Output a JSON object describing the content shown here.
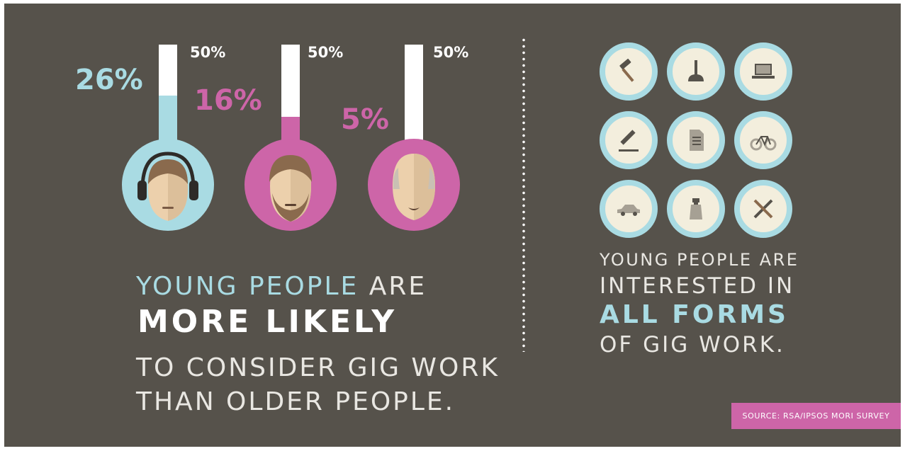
{
  "colors": {
    "background": "#56524b",
    "blue": "#a9dbe3",
    "pink": "#cd65a8",
    "white": "#ffffff",
    "icon_fill": "#f3eedd"
  },
  "gauges": [
    {
      "max_label": "50%",
      "value_label": "26%",
      "fill_fraction": 0.52,
      "color": "#a9dbe3",
      "face": "young-face-with-headphones"
    },
    {
      "max_label": "50%",
      "value_label": "16%",
      "fill_fraction": 0.32,
      "color": "#cd65a8",
      "face": "bearded-face"
    },
    {
      "max_label": "50%",
      "value_label": "5%",
      "fill_fraction": 0.1,
      "color": "#cd65a8",
      "face": "older-balding-face"
    }
  ],
  "left_text": {
    "line1_accent": "YOUNG PEOPLE",
    "line1_rest": " ARE",
    "line2": "MORE LIKELY",
    "line3": "TO CONSIDER GIG WORK",
    "line4": "THAN OLDER PEOPLE."
  },
  "icons": [
    "hammer-icon",
    "plunger-icon",
    "laptop-icon",
    "pencil-icon",
    "document-icon",
    "bicycle-icon",
    "car-icon",
    "spray-bottle-icon",
    "tools-icon"
  ],
  "right_text": {
    "line1": "YOUNG PEOPLE ARE",
    "line2": "INTERESTED IN",
    "line3": "ALL FORMS",
    "line4": "OF GIG WORK."
  },
  "source": "SOURCE: RSA/IPSOS MORI SURVEY"
}
